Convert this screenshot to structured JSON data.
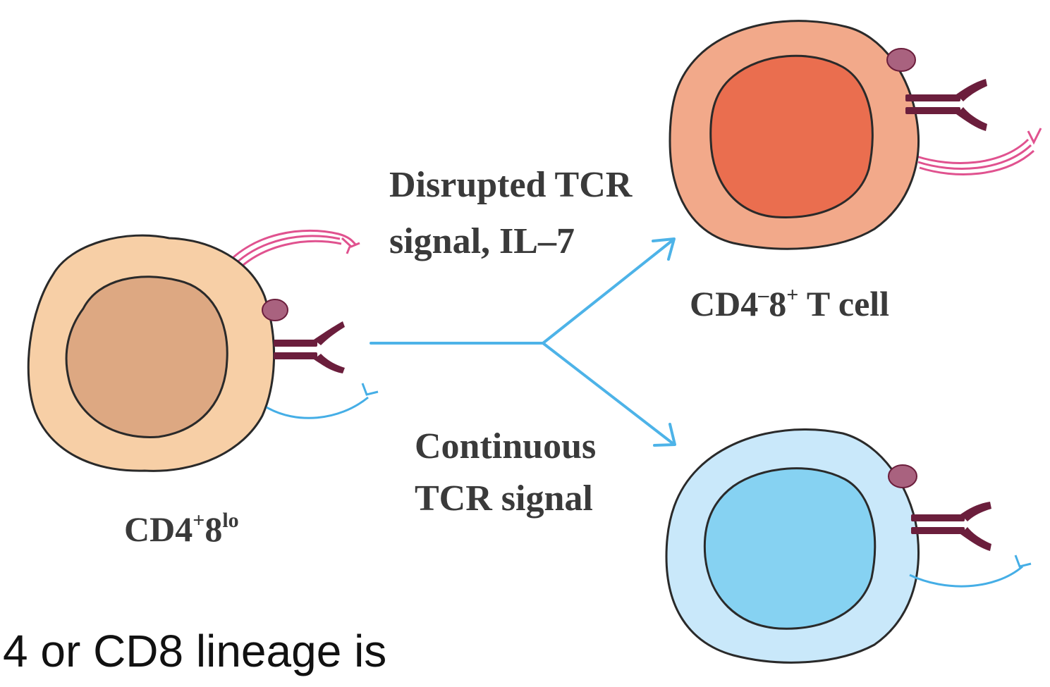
{
  "diagram": {
    "source_cell": {
      "label_main": "CD4",
      "label_sup1": "+",
      "label_mid": "8",
      "label_sup2": "lo",
      "outer_color": "#f7cfa6",
      "nucleus_color": "#dda882"
    },
    "top_branch": {
      "line1": "Disrupted TCR",
      "line2": "signal, IL–7"
    },
    "bottom_branch": {
      "line1": "Continuous",
      "line2": "TCR signal"
    },
    "top_cell": {
      "label_main": "CD4",
      "label_sup1": "–",
      "label_mid": "8",
      "label_sup2": "+",
      "label_tail": " T cell",
      "outer_color": "#f2a98a",
      "nucleus_color": "#ea6e4f"
    },
    "bottom_cell": {
      "outer_color": "#c9e8fa",
      "nucleus_color": "#86d2f2"
    },
    "colors": {
      "arrow": "#4db3e8",
      "cd4_marker": "#e0528f",
      "cd8_marker": "#45aee6",
      "receptor": "#6b1e3c",
      "receptor_knob": "#a9627f",
      "outline": "#2a2a2a"
    }
  },
  "caption": "4 or CD8 lineage is"
}
